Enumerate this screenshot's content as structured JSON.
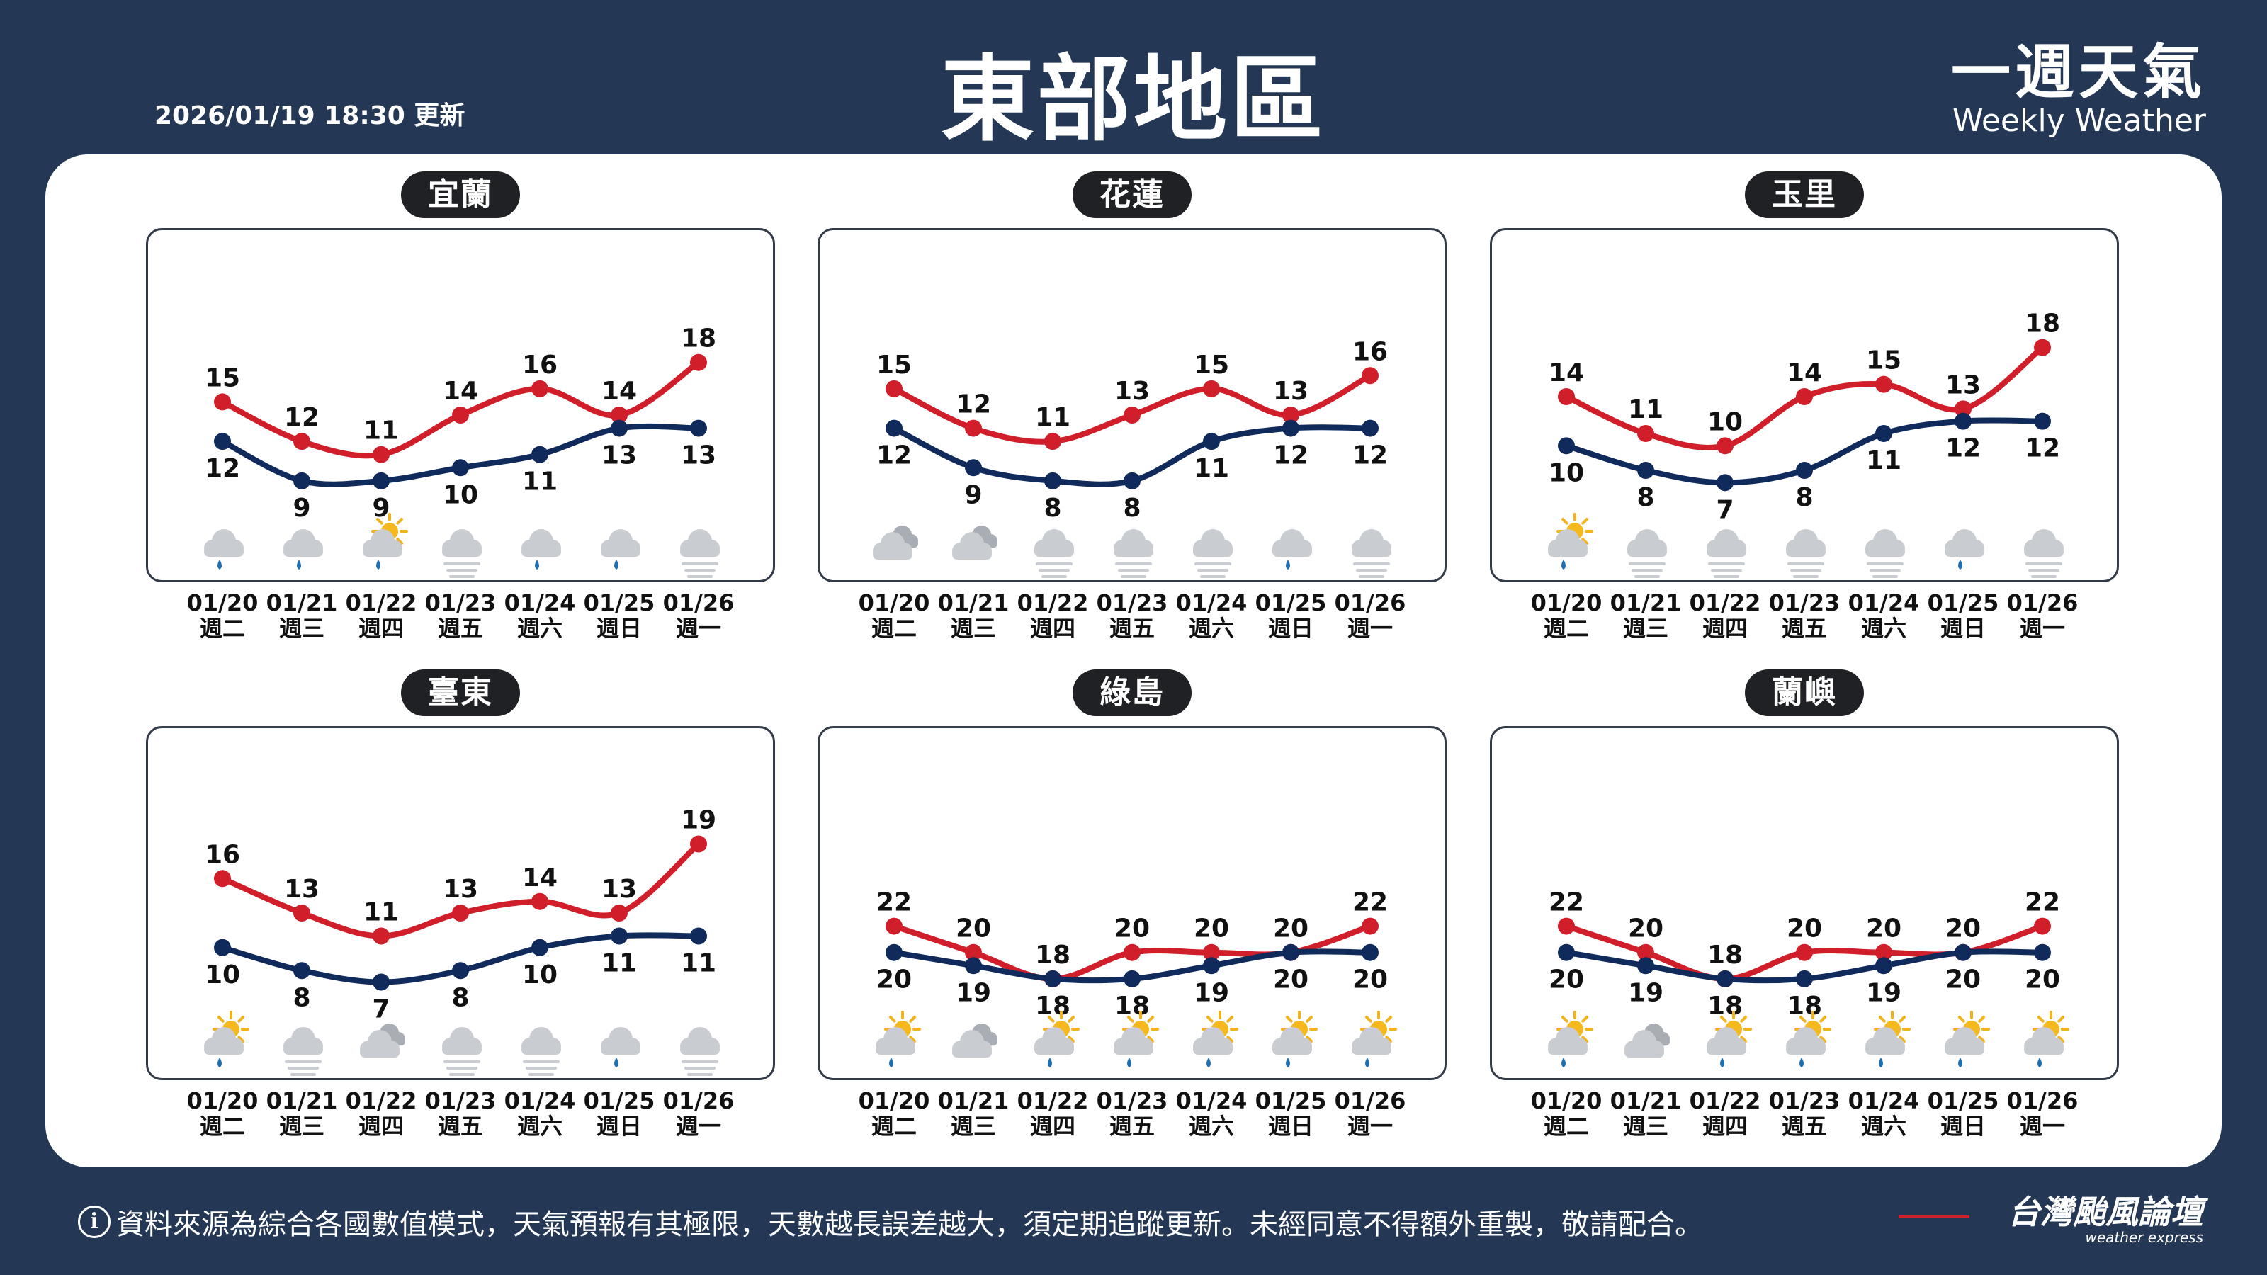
{
  "header": {
    "updated": "2026/01/19 18:30 更新",
    "title": "東部地區",
    "brand_zh": "一週天氣",
    "brand_en": "Weekly Weather"
  },
  "footer": {
    "note": "資料來源為綜合各國數值模式，天氣預報有其極限，天數越長誤差越大，須定期追蹤更新。未經同意不得額外重製，敬請配合。",
    "brand_zh": "台灣颱風論壇",
    "brand_en": "weather express"
  },
  "colors": {
    "high": "#d01f2a",
    "low": "#102a5c",
    "background": "#243754"
  },
  "chart_data": [
    {
      "type": "line",
      "region": "宜蘭",
      "x": [
        "01/20",
        "01/21",
        "01/22",
        "01/23",
        "01/24",
        "01/25",
        "01/26"
      ],
      "weekdays": [
        "週二",
        "週三",
        "週四",
        "週五",
        "週六",
        "週日",
        "週一"
      ],
      "series": [
        {
          "values": [
            15,
            12,
            11,
            14,
            16,
            14,
            18
          ]
        },
        {
          "values": [
            12,
            9,
            9,
            10,
            11,
            13,
            13
          ]
        }
      ],
      "icons": [
        "cloud-rain",
        "cloud-rain",
        "sun-cloud-rain",
        "fog",
        "cloud-rain",
        "cloud-rain",
        "fog"
      ]
    },
    {
      "type": "line",
      "region": "花蓮",
      "x": [
        "01/20",
        "01/21",
        "01/22",
        "01/23",
        "01/24",
        "01/25",
        "01/26"
      ],
      "weekdays": [
        "週二",
        "週三",
        "週四",
        "週五",
        "週六",
        "週日",
        "週一"
      ],
      "series": [
        {
          "values": [
            15,
            12,
            11,
            13,
            15,
            13,
            16
          ]
        },
        {
          "values": [
            12,
            9,
            8,
            8,
            11,
            12,
            12
          ]
        }
      ],
      "icons": [
        "clouds",
        "clouds",
        "fog",
        "fog",
        "fog",
        "cloud-rain",
        "fog"
      ]
    },
    {
      "type": "line",
      "region": "玉里",
      "x": [
        "01/20",
        "01/21",
        "01/22",
        "01/23",
        "01/24",
        "01/25",
        "01/26"
      ],
      "weekdays": [
        "週二",
        "週三",
        "週四",
        "週五",
        "週六",
        "週日",
        "週一"
      ],
      "series": [
        {
          "values": [
            14,
            11,
            10,
            14,
            15,
            13,
            18
          ]
        },
        {
          "values": [
            10,
            8,
            7,
            8,
            11,
            12,
            12
          ]
        }
      ],
      "icons": [
        "sun-cloud-rain",
        "fog",
        "fog",
        "fog",
        "fog",
        "cloud-rain",
        "fog"
      ]
    },
    {
      "type": "line",
      "region": "臺東",
      "x": [
        "01/20",
        "01/21",
        "01/22",
        "01/23",
        "01/24",
        "01/25",
        "01/26"
      ],
      "weekdays": [
        "週二",
        "週三",
        "週四",
        "週五",
        "週六",
        "週日",
        "週一"
      ],
      "series": [
        {
          "values": [
            16,
            13,
            11,
            13,
            14,
            13,
            19
          ]
        },
        {
          "values": [
            10,
            8,
            7,
            8,
            10,
            11,
            11
          ]
        }
      ],
      "icons": [
        "sun-cloud-rain",
        "fog",
        "clouds",
        "fog",
        "fog",
        "cloud-rain",
        "fog"
      ]
    },
    {
      "type": "line",
      "region": "綠島",
      "x": [
        "01/20",
        "01/21",
        "01/22",
        "01/23",
        "01/24",
        "01/25",
        "01/26"
      ],
      "weekdays": [
        "週二",
        "週三",
        "週四",
        "週五",
        "週六",
        "週日",
        "週一"
      ],
      "series": [
        {
          "values": [
            22,
            20,
            18,
            20,
            20,
            20,
            22
          ]
        },
        {
          "values": [
            20,
            19,
            18,
            18,
            19,
            20,
            20
          ]
        }
      ],
      "icons": [
        "sun-cloud-rain",
        "clouds",
        "sun-cloud-rain",
        "sun-cloud-rain",
        "sun-cloud-rain",
        "sun-cloud-rain",
        "sun-cloud-rain"
      ]
    },
    {
      "type": "line",
      "region": "蘭嶼",
      "x": [
        "01/20",
        "01/21",
        "01/22",
        "01/23",
        "01/24",
        "01/25",
        "01/26"
      ],
      "weekdays": [
        "週二",
        "週三",
        "週四",
        "週五",
        "週六",
        "週日",
        "週一"
      ],
      "series": [
        {
          "values": [
            22,
            20,
            18,
            20,
            20,
            20,
            22
          ]
        },
        {
          "values": [
            20,
            19,
            18,
            18,
            19,
            20,
            20
          ]
        }
      ],
      "icons": [
        "sun-cloud-rain",
        "clouds",
        "sun-cloud-rain",
        "sun-cloud-rain",
        "sun-cloud-rain",
        "sun-cloud-rain",
        "sun-cloud-rain"
      ]
    }
  ]
}
